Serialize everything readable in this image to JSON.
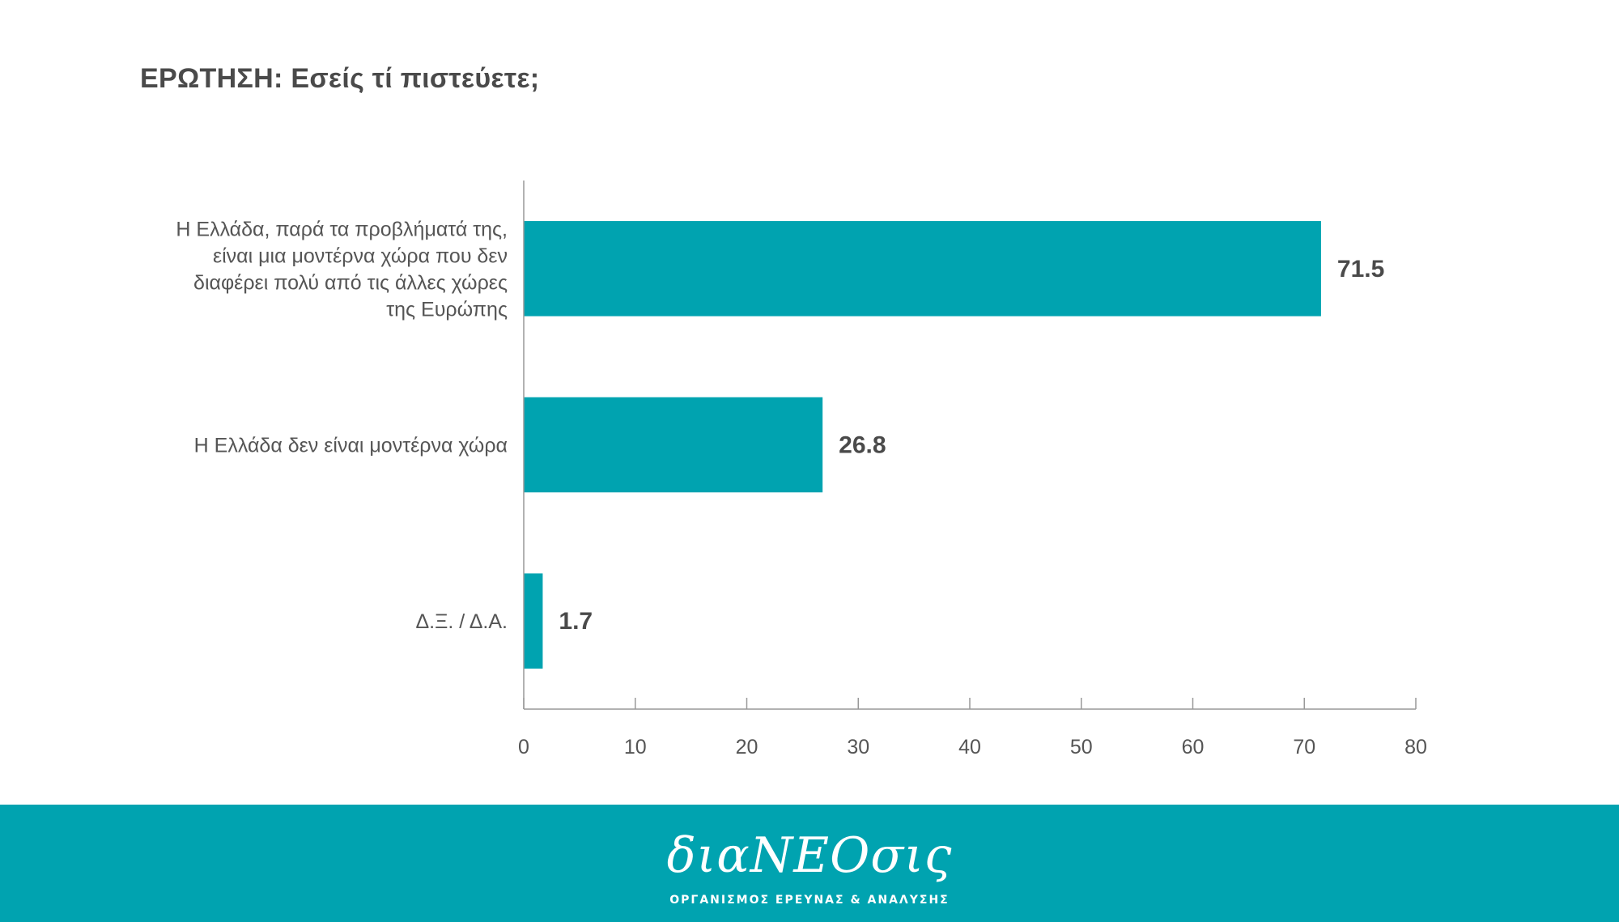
{
  "colors": {
    "bar": "#00a3b0",
    "footer": "#00a3b0",
    "axis": "#999999"
  },
  "chart_data": {
    "type": "bar",
    "orientation": "horizontal",
    "title": "ΕΡΩΤΗΣΗ: Εσείς τί πιστεύετε;",
    "categories": [
      [
        "Η Ελλάδα, παρά τα προβλήματά της,",
        "είναι μια μοντέρνα χώρα που δεν",
        "διαφέρει πολύ από τις άλλες χώρες",
        "της Ευρώπης"
      ],
      [
        "Η Ελλάδα δεν είναι μοντέρνα χώρα"
      ],
      [
        "Δ.Ξ. / Δ.Α."
      ]
    ],
    "values": [
      71.5,
      26.8,
      1.7
    ],
    "value_labels": [
      "71.5",
      "26.8",
      "1.7"
    ],
    "xlim": [
      0,
      80
    ],
    "ticks": [
      "0",
      "10",
      "20",
      "30",
      "40",
      "50",
      "60",
      "70",
      "80"
    ],
    "tick_values": [
      0,
      10,
      20,
      30,
      40,
      50,
      60,
      70,
      80
    ],
    "grid": false
  },
  "footer": {
    "logo_text": "διαΝΕΟσις",
    "subtitle": "ΟΡΓΑΝΙΣΜΟΣ ΕΡΕΥΝΑΣ & ΑΝΑΛΥΣΗΣ"
  }
}
